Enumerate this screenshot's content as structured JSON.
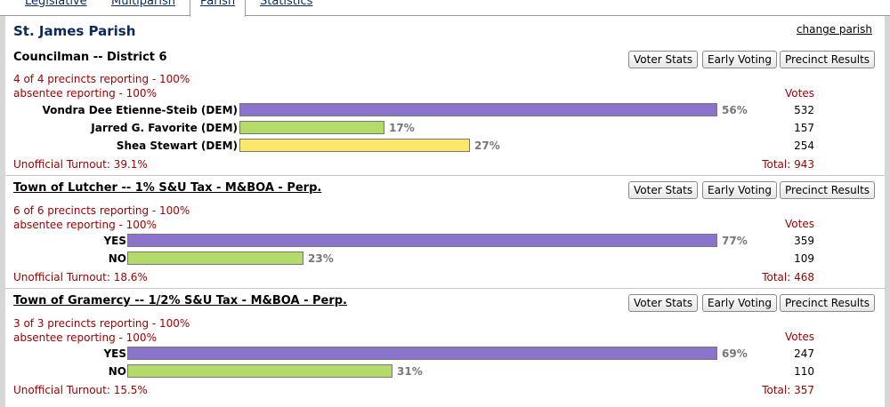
{
  "tabs": {
    "legislative": "Legislative",
    "multiparish": "Multiparish",
    "parish": "Parish",
    "statistics": "Statistics"
  },
  "parish": {
    "title": "St. James Parish",
    "change_link": "change parish"
  },
  "buttons": {
    "voter_stats": "Voter Stats",
    "early_voting": "Early Voting",
    "precinct_results": "Precinct Results"
  },
  "colors": {
    "purple": "#8a73cb",
    "green": "#b4db6a",
    "yellow": "#fbe86a",
    "status": "#9b0000"
  },
  "races": [
    {
      "title": "Councilman -- District 6",
      "precincts": "4 of 4 precincts reporting - 100%",
      "absentee": "absentee reporting - 100%",
      "votes_header": "Votes",
      "candidates": [
        {
          "name": "Vondra Dee Etienne-Steib (DEM)",
          "percent": "56%",
          "votes": "532",
          "share": 0.56,
          "color": "#8a73cb"
        },
        {
          "name": "Jarred G. Favorite (DEM)",
          "percent": "17%",
          "votes": "157",
          "share": 0.17,
          "color": "#b4db6a"
        },
        {
          "name": "Shea Stewart (DEM)",
          "percent": "27%",
          "votes": "254",
          "share": 0.27,
          "color": "#fbe86a"
        }
      ],
      "turnout": "Unofficial Turnout: 39.1%",
      "total": "Total: 943"
    },
    {
      "title": "Town of Lutcher -- 1% S&U Tax - M&BOA - Perp.",
      "precincts": "6 of 6 precincts reporting - 100%",
      "absentee": "absentee reporting - 100%",
      "votes_header": "Votes",
      "candidates": [
        {
          "name": "YES",
          "percent": "77%",
          "votes": "359",
          "share": 0.77,
          "color": "#8a73cb"
        },
        {
          "name": "NO",
          "percent": "23%",
          "votes": "109",
          "share": 0.23,
          "color": "#b4db6a"
        }
      ],
      "turnout": "Unofficial Turnout: 18.6%",
      "total": "Total: 468"
    },
    {
      "title": "Town of Gramercy -- 1/2% S&U Tax - M&BOA - Perp.",
      "precincts": "3 of 3 precincts reporting - 100%",
      "absentee": "absentee reporting - 100%",
      "votes_header": "Votes",
      "candidates": [
        {
          "name": "YES",
          "percent": "69%",
          "votes": "247",
          "share": 0.69,
          "color": "#8a73cb"
        },
        {
          "name": "NO",
          "percent": "31%",
          "votes": "110",
          "share": 0.31,
          "color": "#b4db6a"
        }
      ],
      "turnout": "Unofficial Turnout: 15.5%",
      "total": "Total: 357"
    }
  ]
}
